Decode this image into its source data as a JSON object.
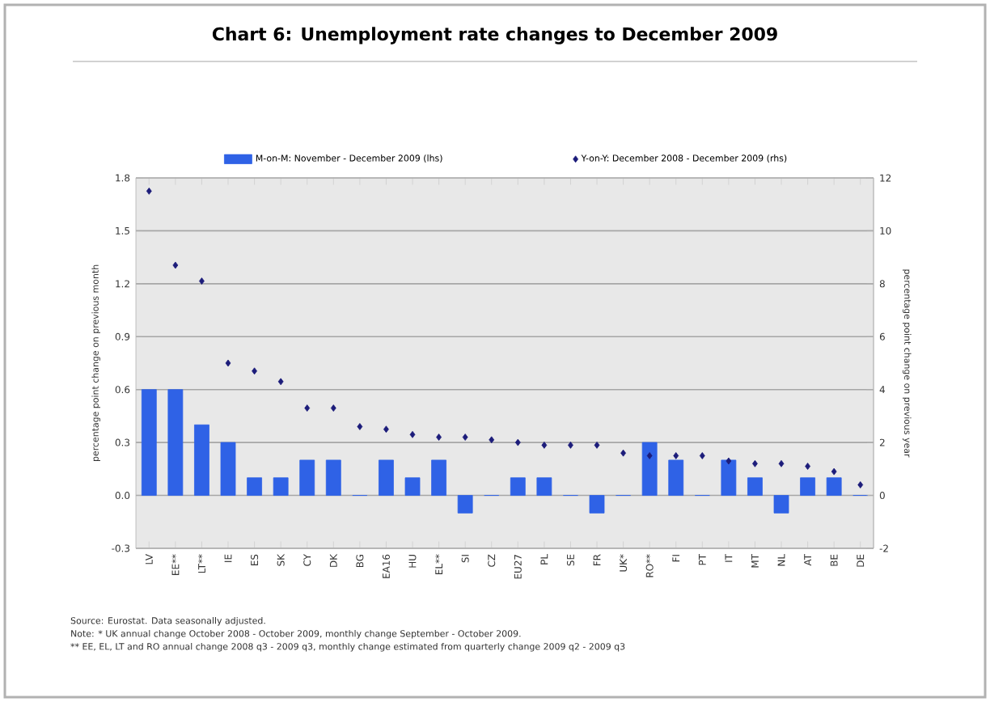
{
  "chart_data": {
    "type": "bar",
    "title": "Chart 6: Unemployment rate changes to December 2009",
    "categories": [
      "LV",
      "EE**",
      "LT**",
      "IE",
      "ES",
      "SK",
      "CY",
      "DK",
      "BG",
      "EA16",
      "HU",
      "EL**",
      "SI",
      "CZ",
      "EU27",
      "PL",
      "SE",
      "FR",
      "UK*",
      "RO**",
      "FI",
      "PT",
      "IT",
      "MT",
      "NL",
      "AT",
      "BE",
      "DE"
    ],
    "series": [
      {
        "name": "M-on-M: November - December 2009 (lhs)",
        "color": "#2f62e6",
        "values": [
          0.6,
          0.6,
          0.4,
          0.3,
          0.1,
          0.1,
          0.2,
          0.2,
          0,
          0.2,
          0.1,
          0.2,
          -0.1,
          0,
          0.1,
          0.1,
          0,
          -0.1,
          0,
          0.3,
          0.2,
          0,
          0.2,
          0.1,
          -0.1,
          0.1,
          0.1,
          0
        ]
      },
      {
        "name": "Y-on-Y: December 2008 - December 2009 (rhs)",
        "type": "scatter",
        "axis": "y2",
        "marker": "diamond",
        "color": "#1c1c7a",
        "values": [
          11.5,
          8.7,
          8.1,
          5.0,
          4.7,
          4.3,
          3.3,
          3.3,
          2.6,
          2.5,
          2.3,
          2.2,
          2.2,
          2.1,
          2.0,
          1.9,
          1.9,
          1.9,
          1.6,
          1.5,
          1.5,
          1.5,
          1.3,
          1.2,
          1.2,
          1.1,
          0.9,
          0.4
        ]
      }
    ],
    "ylabel": "percentage point change on previous month",
    "y2label": "percentage point change on previous year",
    "ylim": [
      -0.3,
      1.8
    ],
    "yticks": [
      -0.3,
      {
        "value": 0,
        "label": "0.0"
      },
      0.3,
      0.6,
      0.9,
      1.2,
      1.5,
      1.8
    ],
    "y2lim": [
      -2,
      12
    ],
    "y2ticks": [
      -2,
      0,
      2,
      4,
      6,
      8,
      10,
      12
    ],
    "grid": "y",
    "legend": "top",
    "annotations": [
      "Source: Eurostat. Data seasonally adjusted.",
      "Note: * UK annual change October 2008 - October 2009, monthly change September - October 2009.",
      "** EE, EL, LT and RO annual change 2008 q3 - 2009 q3, monthly change estimated from quarterly change 2009 q2 - 2009 q3"
    ]
  }
}
